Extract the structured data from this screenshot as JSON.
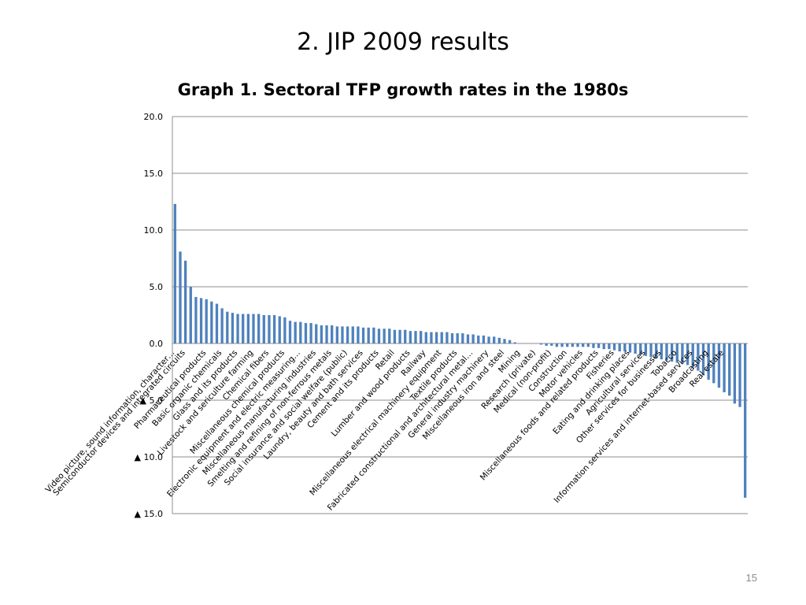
{
  "slide": {
    "title": "2. JIP 2009 results",
    "page_number": "15"
  },
  "chart_data": {
    "type": "bar",
    "title": "Graph 1. Sectoral TFP growth rates in the 1980s",
    "xlabel": "",
    "ylabel": "",
    "ylim": [
      -15,
      20
    ],
    "yticks": [
      20,
      15,
      10,
      5,
      0,
      -5,
      -10,
      -15
    ],
    "ytick_labels": [
      "20.0",
      "15.0",
      "10.0",
      "5.0",
      "0.0",
      "▲ 5.0",
      "▲ 10.0",
      "▲ 15.0"
    ],
    "grid": true,
    "bar_color": "#4f81bd",
    "values": [
      12.3,
      8.1,
      7.3,
      5.0,
      4.1,
      4.0,
      3.9,
      3.7,
      3.5,
      3.1,
      2.8,
      2.7,
      2.6,
      2.6,
      2.6,
      2.6,
      2.6,
      2.5,
      2.5,
      2.5,
      2.4,
      2.3,
      2.0,
      1.9,
      1.9,
      1.8,
      1.8,
      1.7,
      1.6,
      1.6,
      1.6,
      1.5,
      1.5,
      1.5,
      1.5,
      1.5,
      1.4,
      1.4,
      1.4,
      1.3,
      1.3,
      1.3,
      1.2,
      1.2,
      1.2,
      1.1,
      1.1,
      1.1,
      1.0,
      1.0,
      1.0,
      1.0,
      1.0,
      0.9,
      0.9,
      0.9,
      0.8,
      0.8,
      0.7,
      0.7,
      0.6,
      0.6,
      0.5,
      0.4,
      0.3,
      0.1,
      0.0,
      0.0,
      0.0,
      0.0,
      -0.1,
      -0.2,
      -0.2,
      -0.3,
      -0.3,
      -0.3,
      -0.3,
      -0.3,
      -0.3,
      -0.3,
      -0.4,
      -0.4,
      -0.5,
      -0.5,
      -0.6,
      -0.7,
      -0.7,
      -0.8,
      -0.9,
      -1.0,
      -1.1,
      -1.2,
      -1.3,
      -1.4,
      -1.5,
      -1.6,
      -1.7,
      -1.8,
      -1.9,
      -2.1,
      -2.4,
      -2.8,
      -3.2,
      -3.5,
      -3.9,
      -4.3,
      -4.6,
      -5.3,
      -5.6,
      -13.6
    ],
    "category_labels": [
      {
        "index": 0,
        "text": "Video picture, sound information, character…"
      },
      {
        "index": 2,
        "text": "Semiconductor devices and integrated circuits"
      },
      {
        "index": 6,
        "text": "Pharmaceutical products"
      },
      {
        "index": 9,
        "text": "Basic organic chemicals"
      },
      {
        "index": 12,
        "text": "Glass and its products"
      },
      {
        "index": 15,
        "text": "Livestock and sericulture farming"
      },
      {
        "index": 18,
        "text": "Chemical fibers"
      },
      {
        "index": 21,
        "text": "Miscellaneous chemical products"
      },
      {
        "index": 24,
        "text": "Electronic equipment and electric measuring…"
      },
      {
        "index": 27,
        "text": "Miscellaneous manufacturing industries"
      },
      {
        "index": 30,
        "text": "Smelting and refining of non-ferrous metals"
      },
      {
        "index": 33,
        "text": "Social insurance and social welfare (public)"
      },
      {
        "index": 36,
        "text": "Laundry, beauty and bath services"
      },
      {
        "index": 39,
        "text": "Cement and its products"
      },
      {
        "index": 42,
        "text": "Retail"
      },
      {
        "index": 45,
        "text": "Lumber and wood products"
      },
      {
        "index": 48,
        "text": "Railway"
      },
      {
        "index": 51,
        "text": "Miscellaneous electrical machinery equipment"
      },
      {
        "index": 54,
        "text": "Textile products"
      },
      {
        "index": 57,
        "text": "Fabricated constructional and architectural metal…"
      },
      {
        "index": 60,
        "text": "General industry machinery"
      },
      {
        "index": 63,
        "text": "Miscellaneous iron and steel"
      },
      {
        "index": 66,
        "text": "Mining"
      },
      {
        "index": 69,
        "text": "Research (private)"
      },
      {
        "index": 72,
        "text": "Medical (non-profit)"
      },
      {
        "index": 75,
        "text": "Construction"
      },
      {
        "index": 78,
        "text": "Motor vehicles"
      },
      {
        "index": 81,
        "text": "Miscellaneous foods and related products"
      },
      {
        "index": 84,
        "text": "Fisheries"
      },
      {
        "index": 87,
        "text": "Eating and drinking places"
      },
      {
        "index": 90,
        "text": "Agricultural services"
      },
      {
        "index": 93,
        "text": "Other services for businesses"
      },
      {
        "index": 96,
        "text": "Tobacco"
      },
      {
        "index": 99,
        "text": "Information services and internet-based services"
      },
      {
        "index": 102,
        "text": "Broadcasting"
      },
      {
        "index": 105,
        "text": "Real estate"
      }
    ]
  }
}
